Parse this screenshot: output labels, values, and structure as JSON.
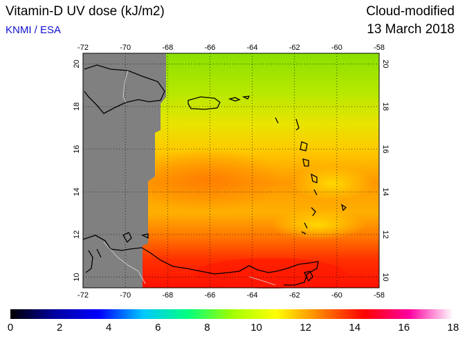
{
  "header": {
    "title": "Vitamin-D UV dose (kJ/m2)",
    "organization": "KNMI / ESA",
    "product": "Cloud-modified",
    "date": "13 March 2018"
  },
  "map": {
    "longitude_ticks": [
      "-72",
      "-70",
      "-68",
      "-66",
      "-64",
      "-62",
      "-60",
      "-58"
    ],
    "latitude_ticks": [
      "10",
      "12",
      "14",
      "16",
      "18",
      "20"
    ],
    "lon_range": [
      -72,
      -58
    ],
    "lat_range": [
      9.5,
      20.5
    ],
    "grid": "dotted",
    "colors": {
      "no_data": "#808080",
      "coastline": "#000000",
      "border": "#d0d0d0"
    }
  },
  "colorbar": {
    "labels": [
      "0",
      "2",
      "4",
      "6",
      "8",
      "10",
      "12",
      "14",
      "16",
      "18"
    ],
    "range": [
      0,
      18
    ],
    "stops": [
      "#000000",
      "#0000a0",
      "#0000ff",
      "#00c8ff",
      "#00ff80",
      "#a0ff00",
      "#ffff00",
      "#ff8000",
      "#ff0000",
      "#ff00a0",
      "#ffffff"
    ]
  }
}
